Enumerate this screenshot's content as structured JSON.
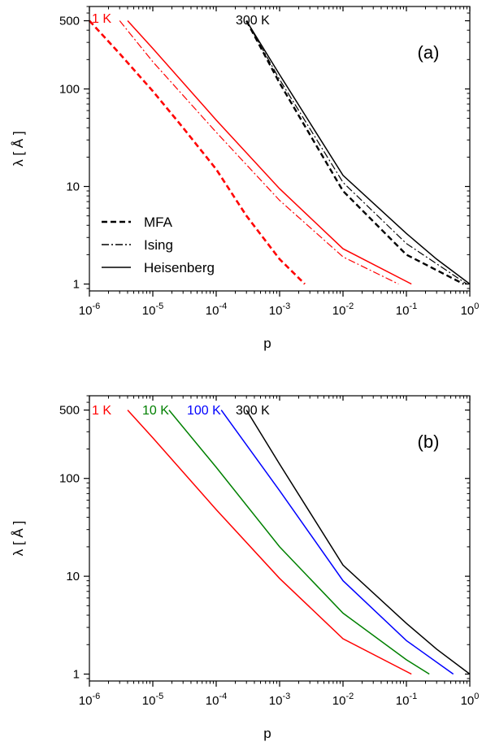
{
  "chart_data": [
    {
      "panel_label": "(a)",
      "type": "line",
      "xlabel": "p",
      "ylabel": "λ [ Å ]",
      "xscale": "log",
      "yscale": "log",
      "xlim": [
        1e-06,
        1
      ],
      "ylim": [
        0.85,
        700
      ],
      "x_ticks": [
        {
          "v": 1e-06,
          "base": "10",
          "exp": "-6"
        },
        {
          "v": 1e-05,
          "base": "10",
          "exp": "-5"
        },
        {
          "v": 0.0001,
          "base": "10",
          "exp": "-4"
        },
        {
          "v": 0.001,
          "base": "10",
          "exp": "-3"
        },
        {
          "v": 0.01,
          "base": "10",
          "exp": "-2"
        },
        {
          "v": 0.1,
          "base": "10",
          "exp": "-1"
        },
        {
          "v": 1,
          "base": "10",
          "exp": "0"
        }
      ],
      "y_ticks": [
        {
          "v": 1,
          "label": "1"
        },
        {
          "v": 10,
          "label": "10"
        },
        {
          "v": 100,
          "label": "100"
        },
        {
          "v": 500,
          "label": "500"
        }
      ],
      "temperature_labels": [
        {
          "text": "1 K",
          "color": "#ff0000"
        },
        {
          "text": "300 K",
          "color": "#000000"
        }
      ],
      "legend": {
        "placement": "lower-left",
        "entries": [
          {
            "label": "MFA",
            "style": "dashed"
          },
          {
            "label": "Ising",
            "style": "dashdot"
          },
          {
            "label": "Heisenberg",
            "style": "solid"
          }
        ]
      },
      "series": [
        {
          "temperature": "1 K",
          "model": "MFA",
          "color": "#ff0000",
          "style": "dashed",
          "width": 2.6,
          "x": [
            1e-06,
            3e-06,
            1e-05,
            3e-05,
            0.0001,
            0.0003,
            0.001,
            0.0025
          ],
          "y": [
            500,
            230,
            95,
            40,
            15,
            5,
            1.8,
            1
          ]
        },
        {
          "temperature": "1 K",
          "model": "Ising",
          "color": "#ff0000",
          "style": "dashdot",
          "width": 1.2,
          "x": [
            3e-06,
            1e-05,
            0.0001,
            0.001,
            0.01,
            0.075
          ],
          "y": [
            500,
            190,
            36,
            7.2,
            1.9,
            1
          ]
        },
        {
          "temperature": "1 K",
          "model": "Heisenberg",
          "color": "#ff0000",
          "style": "solid",
          "width": 1.5,
          "x": [
            4e-06,
            1e-05,
            0.0001,
            0.001,
            0.01,
            0.12
          ],
          "y": [
            500,
            260,
            48,
            9.5,
            2.3,
            1
          ]
        },
        {
          "temperature": "300 K",
          "model": "MFA",
          "color": "#000000",
          "style": "dashed",
          "width": 2.4,
          "x": [
            0.0003,
            0.001,
            0.01,
            0.1,
            0.8
          ],
          "y": [
            500,
            115,
            9,
            2,
            1
          ]
        },
        {
          "temperature": "300 K",
          "model": "Ising",
          "color": "#000000",
          "style": "dashdot",
          "width": 1.2,
          "x": [
            0.0003,
            0.001,
            0.01,
            0.1,
            0.9
          ],
          "y": [
            500,
            125,
            11,
            2.6,
            1
          ]
        },
        {
          "temperature": "300 K",
          "model": "Heisenberg",
          "color": "#000000",
          "style": "solid",
          "width": 1.5,
          "x": [
            0.0003,
            0.001,
            0.01,
            0.1,
            0.3,
            1
          ],
          "y": [
            500,
            140,
            13,
            3.3,
            1.8,
            1
          ]
        }
      ]
    },
    {
      "panel_label": "(b)",
      "type": "line",
      "xlabel": "p",
      "ylabel": "λ [ Å ]",
      "xscale": "log",
      "yscale": "log",
      "xlim": [
        1e-06,
        1
      ],
      "ylim": [
        0.85,
        700
      ],
      "x_ticks": [
        {
          "v": 1e-06,
          "base": "10",
          "exp": "-6"
        },
        {
          "v": 1e-05,
          "base": "10",
          "exp": "-5"
        },
        {
          "v": 0.0001,
          "base": "10",
          "exp": "-4"
        },
        {
          "v": 0.001,
          "base": "10",
          "exp": "-3"
        },
        {
          "v": 0.01,
          "base": "10",
          "exp": "-2"
        },
        {
          "v": 0.1,
          "base": "10",
          "exp": "-1"
        },
        {
          "v": 1,
          "base": "10",
          "exp": "0"
        }
      ],
      "y_ticks": [
        {
          "v": 1,
          "label": "1"
        },
        {
          "v": 10,
          "label": "10"
        },
        {
          "v": 100,
          "label": "100"
        },
        {
          "v": 500,
          "label": "500"
        }
      ],
      "temperature_labels": [
        {
          "text": "1 K",
          "color": "#ff0000"
        },
        {
          "text": "10 K",
          "color": "#008000"
        },
        {
          "text": "100 K",
          "color": "#0000ff"
        },
        {
          "text": "300 K",
          "color": "#000000"
        }
      ],
      "series": [
        {
          "temperature": "1 K",
          "color": "#ff0000",
          "style": "solid",
          "width": 1.5,
          "x": [
            4e-06,
            1e-05,
            0.0001,
            0.001,
            0.01,
            0.12
          ],
          "y": [
            500,
            260,
            48,
            9.5,
            2.3,
            1
          ]
        },
        {
          "temperature": "10 K",
          "color": "#008000",
          "style": "solid",
          "width": 1.5,
          "x": [
            1.8e-05,
            0.0001,
            0.001,
            0.01,
            0.1,
            0.23
          ],
          "y": [
            500,
            130,
            20,
            4.2,
            1.4,
            1
          ]
        },
        {
          "temperature": "100 K",
          "color": "#0000ff",
          "style": "solid",
          "width": 1.5,
          "x": [
            0.00012,
            0.001,
            0.01,
            0.1,
            0.55
          ],
          "y": [
            500,
            75,
            9,
            2.2,
            1
          ]
        },
        {
          "temperature": "300 K",
          "color": "#000000",
          "style": "solid",
          "width": 1.5,
          "x": [
            0.0003,
            0.001,
            0.01,
            0.1,
            0.3,
            1
          ],
          "y": [
            500,
            140,
            13,
            3.3,
            1.8,
            1
          ]
        }
      ]
    }
  ]
}
